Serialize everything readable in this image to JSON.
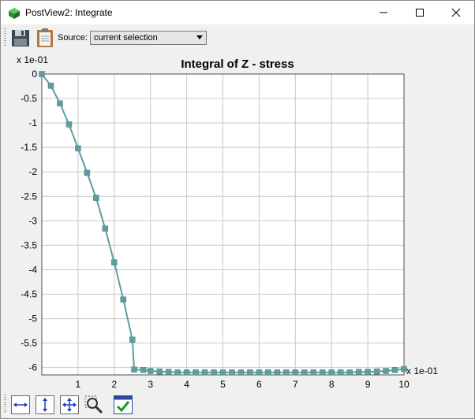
{
  "window": {
    "title": "PostView2: Integrate",
    "controls": [
      "minimize-icon",
      "maximize-icon",
      "close-icon"
    ]
  },
  "toolbar": {
    "save_icon": "floppy-disk-icon",
    "copy_icon": "clipboard-icon",
    "source_label": "Source:",
    "source_value": "current selection"
  },
  "colors": {
    "series": "#5f9ea0",
    "marker": "#5f9ea0",
    "grid": "#c8c8c8",
    "plot_bg": "#ffffff"
  },
  "chart_data": {
    "type": "line",
    "title": "Integral of Z - stress",
    "x_scale_label": "x 1e-01",
    "y_scale_label": "x 1e-01",
    "xlim": [
      0,
      10
    ],
    "ylim": [
      -6.15,
      0
    ],
    "x_ticks": [
      "1",
      "2",
      "3",
      "4",
      "5",
      "6",
      "7",
      "8",
      "9",
      "10"
    ],
    "y_ticks": [
      "0",
      "-0.5",
      "-1",
      "-1.5",
      "-2",
      "-2.5",
      "-3",
      "-3.5",
      "-4",
      "-4.5",
      "-5",
      "-5.5",
      "-6"
    ],
    "y_tick_values": [
      0,
      -0.5,
      -1,
      -1.5,
      -2,
      -2.5,
      -3,
      -3.5,
      -4,
      -4.5,
      -5,
      -5.5,
      -6
    ],
    "grid": true,
    "x": [
      0,
      0.25,
      0.5,
      0.75,
      1.0,
      1.25,
      1.5,
      1.75,
      2.0,
      2.25,
      2.5,
      2.55,
      2.8,
      3.0,
      3.25,
      3.5,
      3.75,
      4.0,
      4.25,
      4.5,
      4.75,
      5.0,
      5.25,
      5.5,
      5.75,
      6.0,
      6.25,
      6.5,
      6.75,
      7.0,
      7.25,
      7.5,
      7.75,
      8.0,
      8.25,
      8.5,
      8.75,
      9.0,
      9.25,
      9.5,
      9.75,
      10.0
    ],
    "y": [
      0,
      -0.24,
      -0.6,
      -1.03,
      -1.52,
      -2.02,
      -2.53,
      -3.16,
      -3.85,
      -4.61,
      -5.43,
      -6.04,
      -6.05,
      -6.07,
      -6.08,
      -6.09,
      -6.1,
      -6.1,
      -6.1,
      -6.1,
      -6.1,
      -6.1,
      -6.1,
      -6.1,
      -6.1,
      -6.1,
      -6.1,
      -6.1,
      -6.1,
      -6.1,
      -6.1,
      -6.1,
      -6.1,
      -6.1,
      -6.1,
      -6.1,
      -6.09,
      -6.09,
      -6.08,
      -6.07,
      -6.05,
      -6.03
    ]
  },
  "bottom_toolbar": {
    "buttons": [
      "fit-width-icon",
      "fit-height-icon",
      "fit-all-icon",
      "zoom-select-icon",
      "apply-check-icon"
    ]
  }
}
